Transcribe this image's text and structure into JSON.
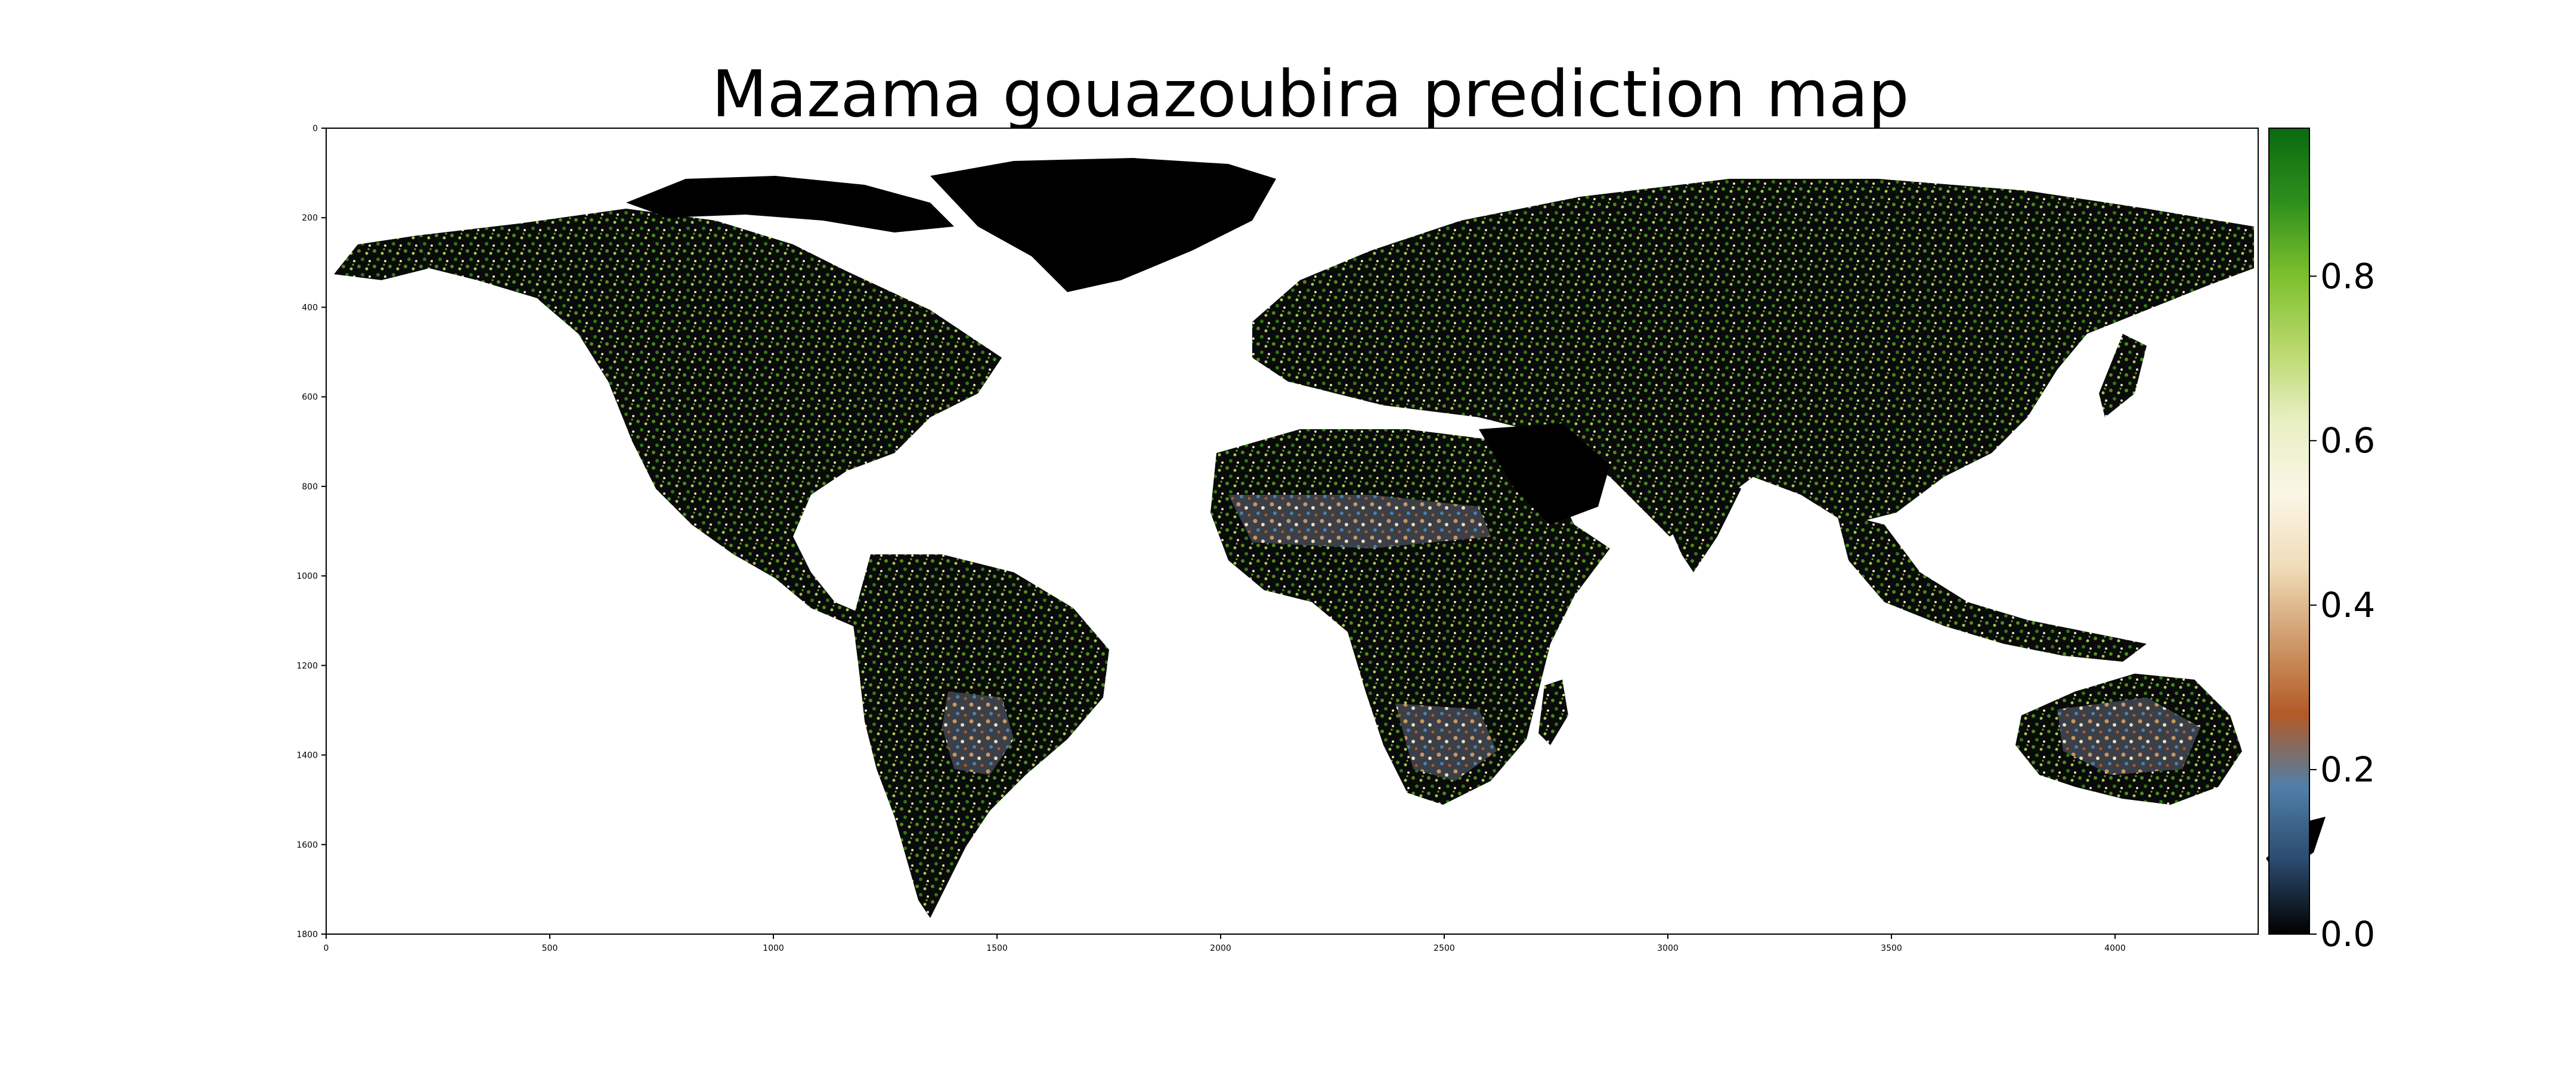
{
  "title": "Mazama gouazoubira prediction map",
  "map": {
    "x_ticks": [
      "0",
      "500",
      "1000",
      "1500",
      "2000",
      "2500",
      "3000",
      "3500",
      "4000"
    ],
    "y_ticks": [
      "0",
      "200",
      "400",
      "600",
      "800",
      "1000",
      "1200",
      "1400",
      "1600",
      "1800"
    ],
    "x_range": [
      0,
      4320
    ],
    "y_range": [
      0,
      1800
    ],
    "background_color": "#ffffff",
    "land_base_color": "#000000"
  },
  "colorbar": {
    "tick_labels": [
      "0.0",
      "0.2",
      "0.4",
      "0.6",
      "0.8"
    ],
    "ticks": [
      0.0,
      0.2,
      0.4,
      0.6,
      0.8
    ],
    "range": [
      0.0,
      0.98
    ],
    "colors": [
      "#000000",
      "#2b4a6e",
      "#4f7fa8",
      "#b25a26",
      "#cf9a6a",
      "#f0dcb8",
      "#fbf6e6",
      "#e8f0c4",
      "#b8d86a",
      "#7cc02c",
      "#2f8f1c",
      "#0a6a10"
    ],
    "orientation": "vertical",
    "placement": "right"
  }
}
